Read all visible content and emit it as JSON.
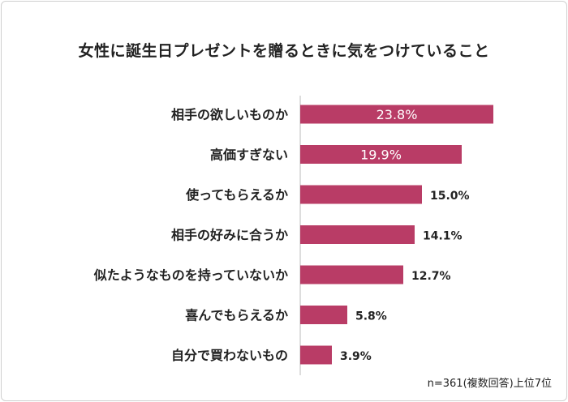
{
  "chart_data": {
    "type": "bar",
    "orientation": "horizontal",
    "title": "女性に誕生日プレゼントを贈るときに気をつけていること",
    "categories": [
      "相手の欲しいものか",
      "高価すぎない",
      "使ってもらえるか",
      "相手の好みに合うか",
      "似たようなものを持っていないか",
      "喜んでもらえるか",
      "自分で買わないもの"
    ],
    "values": [
      23.8,
      19.9,
      15.0,
      14.1,
      12.7,
      5.8,
      3.9
    ],
    "value_labels": [
      "23.8%",
      "19.9%",
      "15.0%",
      "14.1%",
      "12.7%",
      "5.8%",
      "3.9%"
    ],
    "xlim": [
      0,
      30
    ],
    "grid": false,
    "note": "n=361(複数回答)上位7位",
    "bar_color": "#b93c66"
  }
}
